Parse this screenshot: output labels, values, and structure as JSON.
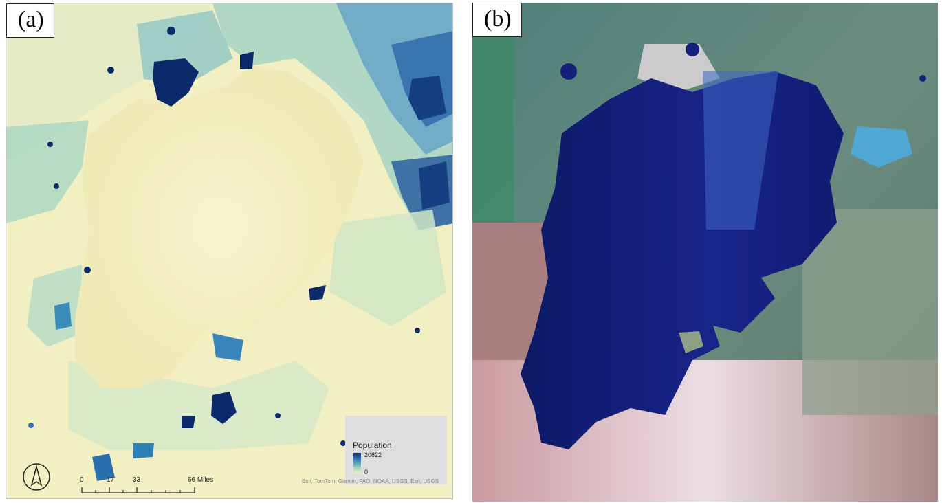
{
  "panels": {
    "a": {
      "label": "(a)",
      "legend": {
        "title": "Population",
        "max": "20822",
        "min": "0"
      },
      "scale_bar": {
        "labels": [
          "0",
          "17",
          "33",
          "66 Miles"
        ]
      },
      "attribution": "Esri, TomTom, Garmin, FAO, NOAA, USGS, Esri, USGS",
      "north_arrow_icon": "north-arrow-icon",
      "colors": {
        "low": "#f6f0bd",
        "mid": "#7fbfc0",
        "high": "#0b2a6b"
      }
    },
    "b": {
      "label": "(b)",
      "colors": {
        "water": "#15207a",
        "land_green": "#3f7f6a",
        "land_pink": "#d7a3a8"
      }
    }
  }
}
